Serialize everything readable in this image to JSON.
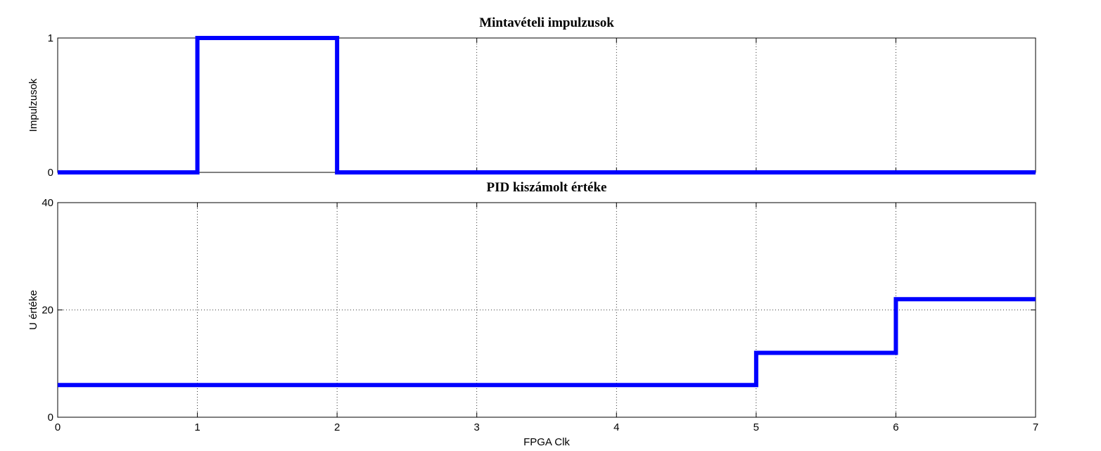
{
  "chart_data": [
    {
      "type": "line",
      "step": true,
      "title": "Mintavételi impulzusok",
      "xlabel": "",
      "ylabel": "Impulzusok",
      "xlim": [
        0,
        7
      ],
      "ylim": [
        0,
        1
      ],
      "x_ticks": [
        0,
        1,
        2,
        3,
        4,
        5,
        6,
        7
      ],
      "x_tick_labels": [],
      "y_ticks": [
        0,
        1
      ],
      "y_tick_labels": [
        "0",
        "1"
      ],
      "grid": true,
      "series": [
        {
          "color": "#0000ff",
          "x": [
            0,
            1,
            1,
            2,
            2,
            7
          ],
          "y": [
            0,
            0,
            1,
            1,
            0,
            0
          ]
        }
      ]
    },
    {
      "type": "line",
      "step": true,
      "title": "PID kiszámolt értéke",
      "xlabel": "FPGA Clk",
      "ylabel": "U értéke",
      "xlim": [
        0,
        7
      ],
      "ylim": [
        0,
        40
      ],
      "x_ticks": [
        0,
        1,
        2,
        3,
        4,
        5,
        6,
        7
      ],
      "x_tick_labels": [
        "0",
        "1",
        "2",
        "3",
        "4",
        "5",
        "6",
        "7"
      ],
      "y_ticks": [
        0,
        20,
        40
      ],
      "y_tick_labels": [
        "0",
        "20",
        "40"
      ],
      "grid": true,
      "series": [
        {
          "color": "#0000ff",
          "x": [
            0,
            5,
            5,
            6,
            6,
            7
          ],
          "y": [
            6,
            6,
            12,
            12,
            22,
            22
          ]
        }
      ]
    }
  ]
}
